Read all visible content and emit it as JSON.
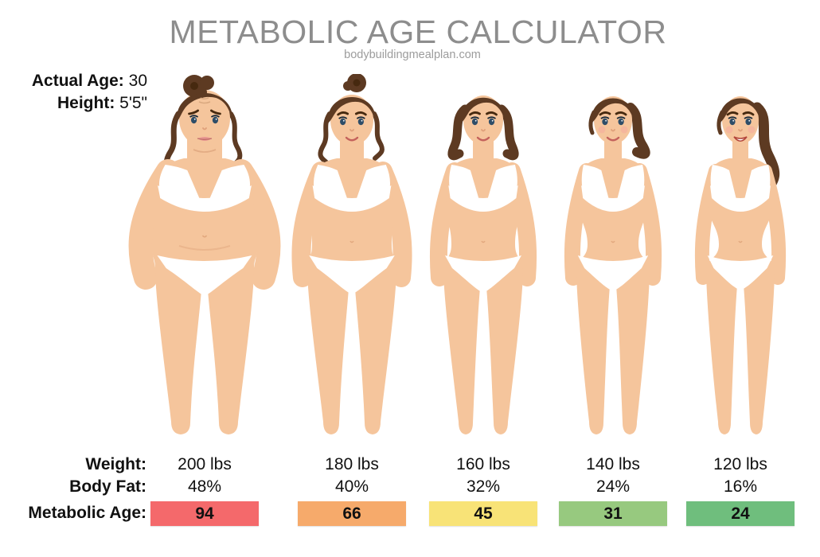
{
  "meta": {
    "title": "METABOLIC AGE CALCULATOR",
    "website": "bodybuildingmealplan.com"
  },
  "profile": {
    "actual_age_label": "Actual Age:",
    "actual_age_value": "30",
    "height_label": "Height:",
    "height_value": "5'5\""
  },
  "row_labels": {
    "weight": "Weight:",
    "body_fat": "Body Fat:",
    "metabolic_age": "Metabolic Age:"
  },
  "figures": [
    {
      "weight": "200 lbs",
      "body_fat": "48%",
      "metabolic_age": "94",
      "age_color": "#F4696B"
    },
    {
      "weight": "180 lbs",
      "body_fat": "40%",
      "metabolic_age": "66",
      "age_color": "#F6AA6B"
    },
    {
      "weight": "160 lbs",
      "body_fat": "32%",
      "metabolic_age": "45",
      "age_color": "#F8E377"
    },
    {
      "weight": "140 lbs",
      "body_fat": "24%",
      "metabolic_age": "31",
      "age_color": "#97C97F"
    },
    {
      "weight": "120 lbs",
      "body_fat": "16%",
      "metabolic_age": "24",
      "age_color": "#6FBE7D"
    }
  ],
  "chart_data": {
    "type": "table",
    "title": "METABOLIC AGE CALCULATOR",
    "source": "bodybuildingmealplan.com",
    "constants": {
      "actual_age": 30,
      "height": "5'5\""
    },
    "columns": [
      "Weight (lbs)",
      "Body Fat (%)",
      "Metabolic Age"
    ],
    "rows": [
      [
        200,
        48,
        94
      ],
      [
        180,
        40,
        66
      ],
      [
        160,
        32,
        45
      ],
      [
        140,
        24,
        31
      ],
      [
        120,
        16,
        24
      ]
    ]
  }
}
